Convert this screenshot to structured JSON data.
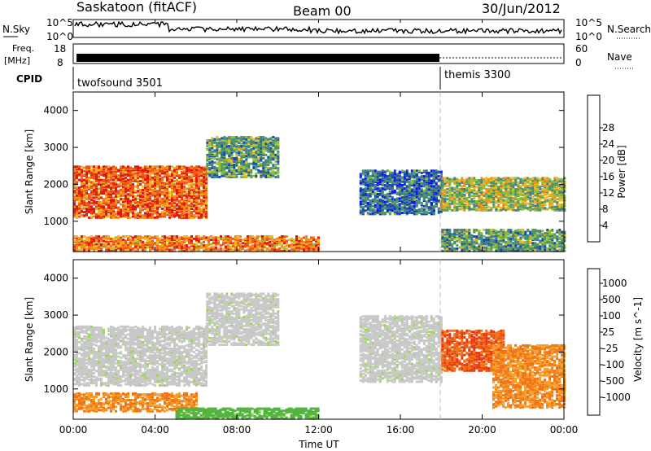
{
  "header": {
    "station": "Saskatoon (fitACF)",
    "beam": "Beam 00",
    "date": "30/Jun/2012"
  },
  "top_strip": {
    "left_label": "N.Sky",
    "right_label": "N.Search",
    "left_ticks": [
      "10^5",
      "10^0"
    ],
    "right_ticks": [
      "10^5",
      "10^0"
    ]
  },
  "freq_strip": {
    "left_label_line1": "Freq.",
    "left_label_line2": "[MHz]",
    "left_ticks": [
      "18",
      "8"
    ],
    "right_label": "Nave",
    "right_ticks": [
      "60",
      "0"
    ]
  },
  "cpid_strip": {
    "label": "CPID",
    "modes": [
      {
        "name": "twofsound 3501",
        "start_hour": 0
      },
      {
        "name": "themis 3300",
        "start_hour": 18
      }
    ]
  },
  "panels": {
    "ylabel": "Slant Range [km]",
    "xlabel": "Time UT",
    "yticks": [
      "1000",
      "2000",
      "3000",
      "4000"
    ],
    "xticks": [
      "00:00",
      "04:00",
      "08:00",
      "12:00",
      "16:00",
      "20:00",
      "00:00"
    ]
  },
  "power_colorbar": {
    "label": "Power [dB]",
    "ticks": [
      "4",
      "8",
      "12",
      "16",
      "20",
      "24",
      "28"
    ],
    "colors": [
      "#1010ff",
      "#1a4aa8",
      "#3f7f8c",
      "#4f9a60",
      "#8fbf3a",
      "#f2b81f",
      "#f58a18",
      "#f0571a",
      "#e01a10"
    ]
  },
  "velocity_colorbar": {
    "label": "Velocity [m s^-1]",
    "ticks": [
      "1000",
      "500",
      "100",
      "25",
      "-25",
      "-100",
      "-500",
      "-1000"
    ],
    "colors": [
      "#1a3dbf",
      "#3a8a6a",
      "#52b43c",
      "#9fd65a",
      "#c8c8c8",
      "#c8c8c8",
      "#f5a02a",
      "#f07418",
      "#e83a12",
      "#e00000"
    ]
  },
  "chart_data": {
    "type": "heatmap",
    "title": "Saskatoon (fitACF)  Beam 00  30/Jun/2012",
    "xlabel": "Time UT",
    "ylabel": "Slant Range [km]",
    "xlim_hours": [
      0,
      24
    ],
    "ylim_km": [
      180,
      4500
    ],
    "mode_change_hour": 18,
    "power_regions": [
      {
        "t0": 0,
        "t1": 6.5,
        "r0": 1100,
        "r1": 2500,
        "level_db": 26
      },
      {
        "t0": 0,
        "t1": 12,
        "r0": 200,
        "r1": 600,
        "level_db": 24
      },
      {
        "t0": 6.5,
        "t1": 10,
        "r0": 2200,
        "r1": 3300,
        "level_db": 12
      },
      {
        "t0": 14,
        "t1": 18,
        "r0": 1200,
        "r1": 2400,
        "level_db": 8
      },
      {
        "t0": 18,
        "t1": 24,
        "r0": 1300,
        "r1": 2200,
        "level_db": 16
      },
      {
        "t0": 18,
        "t1": 24,
        "r0": 200,
        "r1": 800,
        "level_db": 12
      }
    ],
    "velocity_regions": [
      {
        "t0": 0,
        "t1": 6.5,
        "r0": 1100,
        "r1": 2700,
        "vel_ms": 0
      },
      {
        "t0": 0,
        "t1": 6.0,
        "r0": 400,
        "r1": 900,
        "vel_ms": -300
      },
      {
        "t0": 5,
        "t1": 12,
        "r0": 200,
        "r1": 500,
        "vel_ms": 150
      },
      {
        "t0": 6.5,
        "t1": 10,
        "r0": 2200,
        "r1": 3600,
        "vel_ms": 0
      },
      {
        "t0": 14,
        "t1": 18,
        "r0": 1200,
        "r1": 3000,
        "vel_ms": 0
      },
      {
        "t0": 18,
        "t1": 21,
        "r0": 1500,
        "r1": 2600,
        "vel_ms": -700
      },
      {
        "t0": 20.5,
        "t1": 24,
        "r0": 500,
        "r1": 2200,
        "vel_ms": -300
      }
    ]
  }
}
